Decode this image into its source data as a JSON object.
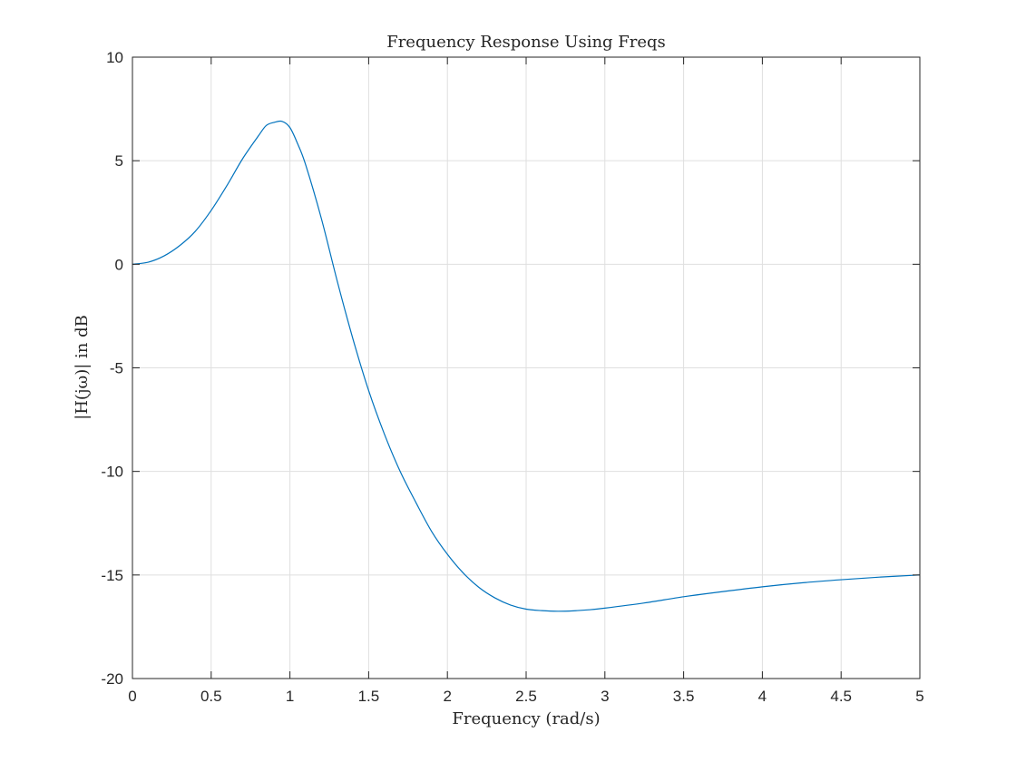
{
  "chart_data": {
    "type": "line",
    "title": "Frequency Response Using Freqs",
    "xlabel": "Frequency (rad/s)",
    "ylabel": "|H(jω)| in dB",
    "xlim": [
      0,
      5
    ],
    "ylim": [
      -20,
      10
    ],
    "xticks": [
      0,
      0.5,
      1,
      1.5,
      2,
      2.5,
      3,
      3.5,
      4,
      4.5,
      5
    ],
    "xtick_labels": [
      "0",
      "0.5",
      "1",
      "1.5",
      "2",
      "2.5",
      "3",
      "3.5",
      "4",
      "4.5",
      "5"
    ],
    "yticks": [
      -20,
      -15,
      -10,
      -5,
      0,
      5,
      10
    ],
    "ytick_labels": [
      "-20",
      "-15",
      "-10",
      "-5",
      "0",
      "5",
      "10"
    ],
    "grid": true,
    "series_color": "#0072BD",
    "series": [
      {
        "x": [
          0,
          0.1,
          0.2,
          0.3,
          0.4,
          0.5,
          0.6,
          0.7,
          0.8,
          0.85,
          0.9,
          0.95,
          1.0,
          1.05,
          1.1,
          1.2,
          1.3,
          1.4,
          1.5,
          1.6,
          1.7,
          1.8,
          1.9,
          2.0,
          2.1,
          2.2,
          2.3,
          2.4,
          2.5,
          2.6,
          2.7,
          2.8,
          2.9,
          3.0,
          3.25,
          3.5,
          3.75,
          4.0,
          4.25,
          4.5,
          4.75,
          5.0
        ],
        "y": [
          0,
          0.1,
          0.4,
          0.9,
          1.6,
          2.6,
          3.8,
          5.1,
          6.2,
          6.7,
          6.85,
          6.9,
          6.6,
          5.8,
          4.8,
          2.2,
          -0.8,
          -3.6,
          -6.1,
          -8.2,
          -10.0,
          -11.5,
          -12.9,
          -14.0,
          -14.9,
          -15.6,
          -16.1,
          -16.45,
          -16.65,
          -16.72,
          -16.75,
          -16.73,
          -16.68,
          -16.6,
          -16.35,
          -16.05,
          -15.8,
          -15.57,
          -15.38,
          -15.23,
          -15.1,
          -15.0
        ]
      }
    ]
  }
}
